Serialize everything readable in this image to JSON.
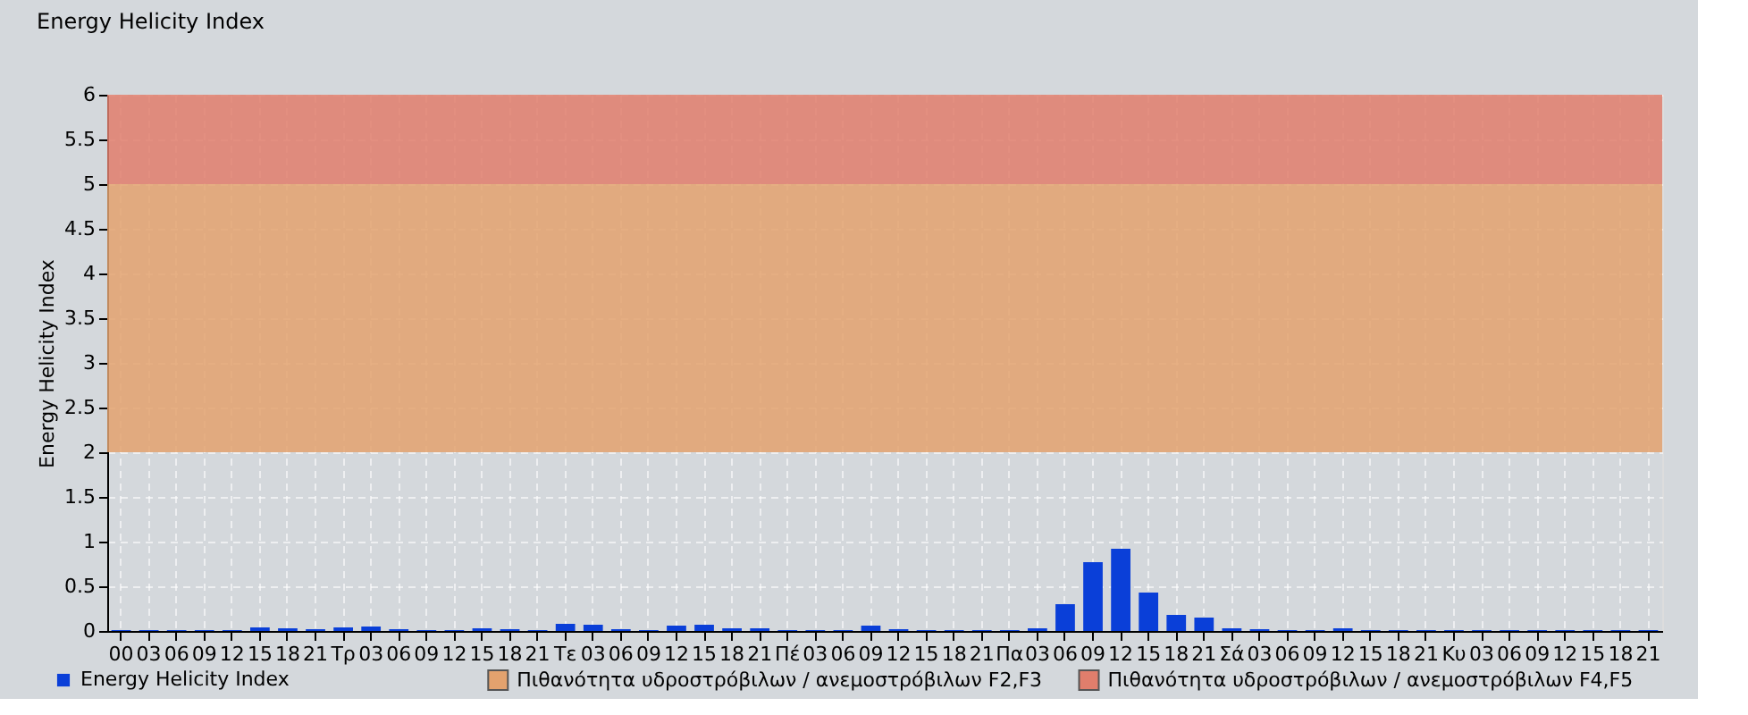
{
  "chart_data": {
    "type": "bar",
    "title": "Energy Helicity Index",
    "ylabel": "Energy Helicity Index",
    "categories": [
      "00",
      "03",
      "06",
      "09",
      "12",
      "15",
      "18",
      "21",
      "Τρ",
      "03",
      "06",
      "09",
      "12",
      "15",
      "18",
      "21",
      "Τε",
      "03",
      "06",
      "09",
      "12",
      "15",
      "18",
      "21",
      "Πέ",
      "03",
      "06",
      "09",
      "12",
      "15",
      "18",
      "21",
      "Πα",
      "03",
      "06",
      "09",
      "12",
      "15",
      "18",
      "21",
      "Σά",
      "03",
      "06",
      "09",
      "12",
      "15",
      "18",
      "21",
      "Κυ",
      "03",
      "06",
      "09",
      "12",
      "15",
      "18",
      "21"
    ],
    "series": [
      {
        "name": "Energy Helicity Index",
        "color": "#0a3fd8",
        "values": [
          0.01,
          0.01,
          0.01,
          0.01,
          0.01,
          0.04,
          0.03,
          0.02,
          0.04,
          0.05,
          0.02,
          0.01,
          0.01,
          0.03,
          0.02,
          0.01,
          0.08,
          0.07,
          0.02,
          0.01,
          0.06,
          0.07,
          0.03,
          0.03,
          0.01,
          0.01,
          0.01,
          0.06,
          0.02,
          0.01,
          0.01,
          0.01,
          0.01,
          0.03,
          0.3,
          0.77,
          0.92,
          0.43,
          0.18,
          0.15,
          0.03,
          0.02,
          0.01,
          0.01,
          0.03,
          0.01,
          0.01,
          0.01,
          0.01,
          0.01,
          0.01,
          0.01,
          0.01,
          0.01,
          0.01,
          0.01
        ]
      }
    ],
    "ylim": [
      0,
      6
    ],
    "yticks": [
      0,
      0.5,
      1,
      1.5,
      2,
      2.5,
      3,
      3.5,
      4,
      4.5,
      5,
      5.5,
      6
    ],
    "bands": [
      {
        "axis": "y",
        "from": 2,
        "to": 5,
        "label": "Πιθανότητα υδροστρόβιλων / ανεμοστρόβιλων F2,F3",
        "color": "#e3a26e"
      },
      {
        "axis": "y",
        "from": 5,
        "to": 6,
        "label": "Πιθανότητα υδροστρόβιλων / ανεμοστρόβιλων F4,F5",
        "color": "#e07e6c"
      }
    ],
    "grid": true,
    "legend": "bottom left"
  }
}
